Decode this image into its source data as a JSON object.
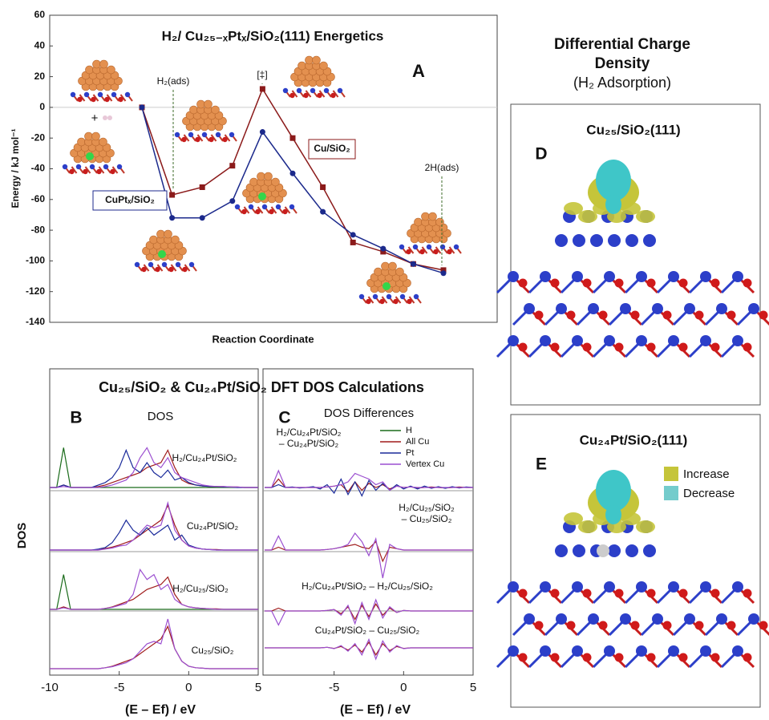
{
  "chart_data": [
    {
      "type": "line",
      "title": "H₂/ Cu₂₅₋ₓPtₓ/SiO₂(111) Energetics",
      "panel_label": "A",
      "ylabel": "Energy / kJ mol⁻¹",
      "xlabel": "Reaction Coordinate",
      "categories": [
        null,
        null,
        null,
        null,
        null,
        null,
        null,
        null,
        null,
        null,
        null
      ],
      "ylim": [
        -140,
        60
      ],
      "yticks": [
        -140,
        -120,
        -100,
        -80,
        -60,
        -40,
        -20,
        0,
        20,
        40,
        60
      ],
      "annotations": [
        "H₂(ads)",
        "[‡]",
        "2H(ads)"
      ],
      "series": [
        {
          "name": "Cu/SiO₂",
          "color": "#8b1a1a",
          "marker": "square",
          "values": [
            0,
            -57,
            -52,
            -38,
            12,
            -20,
            -52,
            -88,
            -94,
            -102,
            -106
          ]
        },
        {
          "name": "CuPtₓ/SiO₂",
          "color": "#1c2a8c",
          "marker": "circle",
          "values": [
            0,
            -72,
            -72,
            -61,
            -16,
            -43,
            -68,
            -83,
            -92,
            -102,
            -108
          ]
        }
      ]
    },
    {
      "type": "line",
      "title": "Cu₂₅/SiO₂ & Cu₂₄Pt/SiO₂ DFT DOS Calculations",
      "panel_label": "B",
      "subtitle": "DOS",
      "ylabel": "DOS",
      "xlabel": "(E – Ef)  / eV",
      "xlim": [
        -10,
        5
      ],
      "xticks": [
        -10,
        -5,
        0,
        5
      ],
      "ylim": [
        0,
        1
      ],
      "colors": [
        "#1a6b1a",
        "#a01c1c",
        "#1a2a9a",
        "#9b4fd0"
      ],
      "x": [
        -10,
        -9.5,
        -9,
        -8.5,
        -8,
        -7.5,
        -7,
        -6.5,
        -6,
        -5.5,
        -5,
        -4.5,
        -4,
        -3.5,
        -3,
        -2.5,
        -2,
        -1.5,
        -1,
        -0.5,
        0,
        0.5,
        1,
        1.5,
        2,
        2.5,
        3,
        3.5,
        4,
        4.5,
        5
      ],
      "panels": [
        {
          "label": "H₂/Cu₂₄Pt/SiO₂",
          "values": [
            [
              0,
              0,
              0.8,
              0,
              0,
              0,
              0,
              0,
              0,
              0,
              0,
              0,
              0,
              0,
              0,
              0,
              0,
              0,
              0,
              0,
              0,
              0,
              0,
              0,
              0,
              0,
              0,
              0,
              0,
              0,
              0
            ],
            [
              0,
              0,
              0.05,
              0,
              0,
              0,
              0,
              0.02,
              0.05,
              0.1,
              0.15,
              0.2,
              0.25,
              0.3,
              0.4,
              0.45,
              0.5,
              0.75,
              0.4,
              0.15,
              0.08,
              0.05,
              0.03,
              0.02,
              0.02,
              0.02,
              0.01,
              0.01,
              0,
              0,
              0
            ],
            [
              0,
              0,
              0.05,
              0,
              0,
              0,
              0,
              0.05,
              0.1,
              0.2,
              0.4,
              0.75,
              0.4,
              0.3,
              0.5,
              0.3,
              0.2,
              0.35,
              0.15,
              0.2,
              0.1,
              0.05,
              0.03,
              0.02,
              0.02,
              0.01,
              0.01,
              0,
              0,
              0,
              0
            ],
            [
              0,
              0,
              0.02,
              0,
              0,
              0,
              0,
              0,
              0.02,
              0.05,
              0.1,
              0.15,
              0.3,
              0.6,
              0.8,
              0.5,
              0.4,
              0.6,
              0.3,
              0.2,
              0.15,
              0.1,
              0.05,
              0.03,
              0.02,
              0.02,
              0.01,
              0.01,
              0,
              0,
              0
            ]
          ]
        },
        {
          "label": "Cu₂₄Pt/SiO₂",
          "values": [
            null,
            [
              0,
              0,
              0,
              0,
              0,
              0,
              0,
              0,
              0.03,
              0.06,
              0.1,
              0.15,
              0.2,
              0.3,
              0.4,
              0.5,
              0.6,
              0.9,
              0.5,
              0.2,
              0.08,
              0.04,
              0.02,
              0.01,
              0.01,
              0,
              0,
              0,
              0,
              0,
              0
            ],
            [
              0,
              0,
              0,
              0,
              0,
              0,
              0,
              0.02,
              0.05,
              0.15,
              0.35,
              0.6,
              0.4,
              0.3,
              0.45,
              0.3,
              0.4,
              0.5,
              0.2,
              0.3,
              0.1,
              0.05,
              0.02,
              0.01,
              0,
              0,
              0,
              0,
              0,
              0,
              0
            ],
            [
              0,
              0,
              0,
              0,
              0,
              0,
              0,
              0,
              0.02,
              0.04,
              0.08,
              0.1,
              0.2,
              0.35,
              0.5,
              0.45,
              0.5,
              0.95,
              0.4,
              0.2,
              0.08,
              0.04,
              0.02,
              0.01,
              0,
              0,
              0,
              0,
              0,
              0,
              0
            ]
          ]
        },
        {
          "label": "H₂/Cu₂₅/SiO₂",
          "values": [
            [
              0,
              0,
              0.7,
              0,
              0,
              0,
              0,
              0,
              0,
              0,
              0,
              0,
              0,
              0,
              0,
              0,
              0,
              0,
              0,
              0,
              0,
              0,
              0,
              0,
              0,
              0,
              0,
              0,
              0,
              0,
              0
            ],
            [
              0,
              0,
              0.05,
              0,
              0,
              0,
              0,
              0,
              0.02,
              0.05,
              0.1,
              0.15,
              0.2,
              0.3,
              0.4,
              0.45,
              0.5,
              0.65,
              0.3,
              0.1,
              0.05,
              0.03,
              0.02,
              0.01,
              0.01,
              0,
              0,
              0,
              0,
              0,
              0
            ],
            null,
            [
              0,
              0,
              0.03,
              0,
              0,
              0,
              0,
              0,
              0.02,
              0.04,
              0.08,
              0.12,
              0.3,
              0.8,
              0.6,
              0.7,
              0.4,
              0.5,
              0.2,
              0.1,
              0.05,
              0.03,
              0.02,
              0.01,
              0,
              0,
              0,
              0,
              0,
              0,
              0
            ]
          ]
        },
        {
          "label": "Cu₂₅/SiO₂",
          "values": [
            null,
            [
              0,
              0,
              0,
              0,
              0,
              0,
              0,
              0,
              0.02,
              0.05,
              0.1,
              0.15,
              0.2,
              0.3,
              0.4,
              0.5,
              0.6,
              0.85,
              0.4,
              0.15,
              0.05,
              0.02,
              0.01,
              0,
              0,
              0,
              0,
              0,
              0,
              0,
              0
            ],
            null,
            [
              0,
              0,
              0,
              0,
              0,
              0,
              0,
              0,
              0.02,
              0.04,
              0.08,
              0.12,
              0.2,
              0.35,
              0.5,
              0.55,
              0.5,
              1,
              0.4,
              0.15,
              0.05,
              0.02,
              0.01,
              0,
              0,
              0,
              0,
              0,
              0,
              0,
              0
            ]
          ]
        }
      ]
    },
    {
      "type": "line",
      "panel_label": "C",
      "subtitle": "DOS Differences",
      "xlabel": "(E – Ef) / eV",
      "xlim": [
        -10,
        5
      ],
      "xticks": [
        -5,
        0,
        5
      ],
      "ylim": [
        -1,
        1
      ],
      "series": [
        {
          "name": "H",
          "color": "#1a6b1a"
        },
        {
          "name": "All Cu",
          "color": "#a01c1c"
        },
        {
          "name": "Pt",
          "color": "#1a2a9a"
        },
        {
          "name": "Vertex Cu",
          "color": "#9b4fd0"
        }
      ],
      "x": [
        -10,
        -9.5,
        -9,
        -8.5,
        -8,
        -7.5,
        -7,
        -6.5,
        -6,
        -5.5,
        -5,
        -4.5,
        -4,
        -3.5,
        -3,
        -2.5,
        -2,
        -1.5,
        -1,
        -0.5,
        0,
        0.5,
        1,
        1.5,
        2,
        2.5,
        3,
        3.5,
        4,
        4.5,
        5
      ],
      "panels": [
        {
          "label": [
            "H₂/Cu₂₄Pt/SiO₂",
            "– Cu₂₄Pt/SiO₂"
          ],
          "values": [
            null,
            [
              0,
              0,
              0.3,
              0,
              0,
              0,
              0,
              0,
              0,
              0.02,
              0.05,
              0.1,
              -0.15,
              0.2,
              -0.1,
              0.15,
              0,
              0.1,
              -0.05,
              0.05,
              0,
              0.02,
              -0.02,
              0,
              0.02,
              0,
              -0.02,
              0,
              0.02,
              0,
              0
            ],
            [
              0,
              0,
              0.1,
              0,
              0.02,
              -0.02,
              0,
              0.03,
              -0.05,
              0.1,
              -0.2,
              0.3,
              -0.25,
              0.2,
              -0.3,
              0.25,
              -0.1,
              0.15,
              -0.1,
              0.1,
              -0.05,
              0.05,
              -0.05,
              0.05,
              -0.03,
              0.03,
              -0.03,
              0.03,
              -0.02,
              0.02,
              0
            ],
            [
              0,
              0,
              0.6,
              0,
              0,
              0,
              0,
              0,
              0,
              0.02,
              0.05,
              0.1,
              0.2,
              0.5,
              0.4,
              0.3,
              0.1,
              0.2,
              -0.1,
              0.05,
              0,
              0.02,
              0,
              0,
              0,
              0,
              0,
              0,
              0,
              0,
              0
            ]
          ]
        },
        {
          "label": [
            "H₂/Cu₂₅/SiO₂",
            "– Cu₂₅/SiO₂"
          ],
          "values": [
            null,
            [
              0,
              0,
              0.1,
              0,
              0,
              0,
              0,
              0,
              0,
              0.02,
              0.05,
              0.1,
              0.15,
              0.2,
              0.1,
              0.05,
              0.3,
              -0.4,
              0.1,
              0.05,
              0,
              0,
              0,
              0,
              0,
              0,
              0,
              0,
              0,
              0,
              0
            ],
            null,
            [
              0,
              0,
              0.5,
              0,
              0,
              0,
              0,
              0,
              0,
              0.02,
              0.05,
              0.1,
              0.2,
              0.6,
              0.3,
              -0.2,
              0.4,
              -1,
              0.2,
              0.05,
              0,
              0,
              0,
              0,
              0,
              0,
              0,
              0,
              0,
              0,
              0
            ]
          ]
        },
        {
          "label": [
            "H₂/Cu₂₄Pt/SiO₂ – H₂/Cu₂₅/SiO₂"
          ],
          "values": [
            null,
            [
              0,
              0,
              0.1,
              0,
              0,
              0,
              0,
              0,
              0,
              0.02,
              0.05,
              -0.1,
              0.15,
              -0.3,
              0.2,
              -0.2,
              0.25,
              -0.15,
              0.1,
              -0.05,
              0.02,
              0,
              0,
              0,
              0,
              0,
              0,
              0,
              0,
              0,
              0
            ],
            null,
            [
              0,
              0,
              -0.5,
              0,
              0,
              0,
              0,
              0,
              0,
              0.02,
              0.05,
              -0.15,
              0.2,
              -0.45,
              0.3,
              -0.3,
              0.4,
              -0.25,
              0.15,
              -0.05,
              0.02,
              0,
              0,
              0,
              0,
              0,
              0,
              0,
              0,
              0,
              0
            ]
          ]
        },
        {
          "label": [
            "Cu₂₄Pt/SiO₂ – Cu₂₅/SiO₂"
          ],
          "values": [
            null,
            [
              0,
              0,
              0,
              0,
              0,
              0,
              0,
              0,
              0,
              0.02,
              -0.02,
              0.05,
              -0.08,
              0.1,
              -0.15,
              0.2,
              -0.25,
              0.15,
              -0.1,
              0.05,
              -0.02,
              0,
              0,
              0,
              0,
              0,
              0,
              0,
              0,
              0,
              0
            ],
            null,
            [
              0,
              0,
              0,
              0,
              0,
              0,
              0,
              0,
              0,
              0.02,
              -0.03,
              0.08,
              -0.12,
              0.15,
              -0.25,
              0.3,
              -0.4,
              0.25,
              -0.15,
              0.08,
              -0.03,
              0,
              0,
              0,
              0,
              0,
              0,
              0,
              0,
              0,
              0
            ]
          ]
        }
      ]
    }
  ],
  "charge_density": {
    "title": [
      "Differential Charge",
      "Density"
    ],
    "subtitle": "(H₂ Adsorption)",
    "panels": [
      {
        "title": "Cu₂₅/SiO₂(111)",
        "label": "D"
      },
      {
        "title": "Cu₂₄Pt/SiO₂(111)",
        "label": "E"
      }
    ],
    "legend": [
      {
        "name": "Increase",
        "color": "#c5c53a"
      },
      {
        "name": "Decrease",
        "color": "#74cccc"
      }
    ]
  }
}
